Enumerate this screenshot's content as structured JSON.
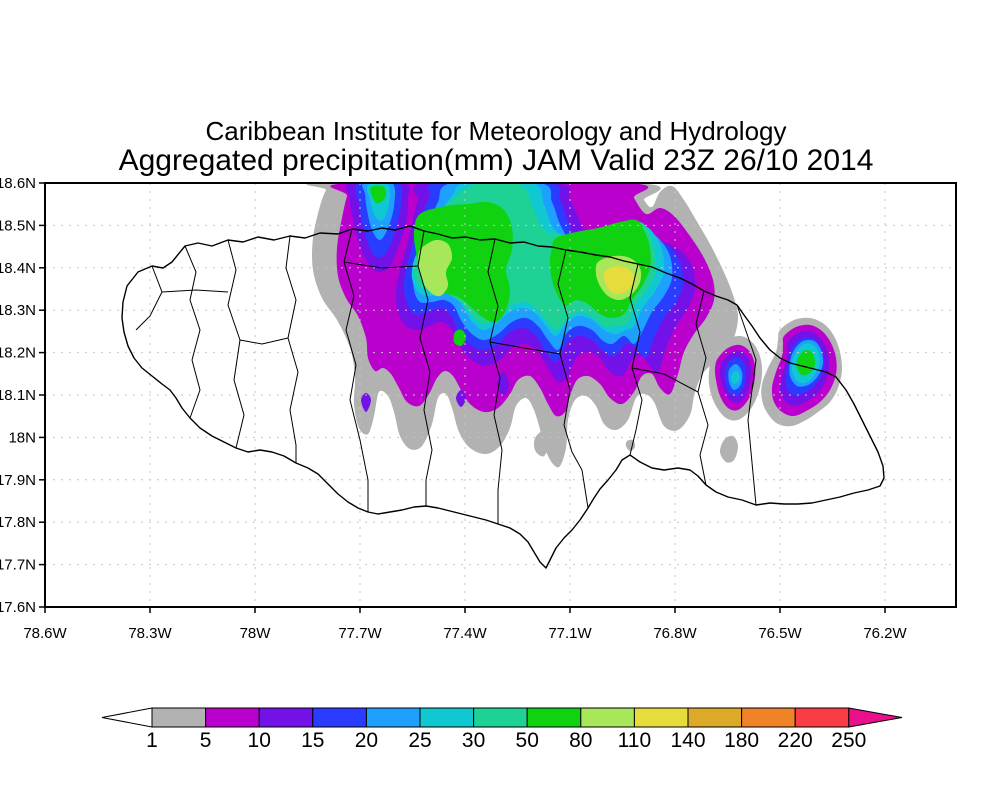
{
  "title": {
    "line1": "Caribbean Institute for Meteorology and Hydrology",
    "line2": "Aggregated precipitation(mm) JAM Valid 23Z 26/10 2014"
  },
  "axes": {
    "lat": [
      "18.6N",
      "18.5N",
      "18.4N",
      "18.3N",
      "18.2N",
      "18.1N",
      "18N",
      "17.9N",
      "17.8N",
      "17.7N",
      "17.6N"
    ],
    "lon": [
      "78.6W",
      "78.3W",
      "78W",
      "77.7W",
      "77.4W",
      "77.1W",
      "76.8W",
      "76.5W",
      "76.2W"
    ]
  },
  "colorbar": {
    "labels": [
      "1",
      "5",
      "10",
      "15",
      "20",
      "25",
      "30",
      "50",
      "80",
      "110",
      "140",
      "180",
      "220",
      "250"
    ],
    "colors": [
      "#b2b2b2",
      "#ba00cd",
      "#7312e8",
      "#2a3cff",
      "#1ea0ff",
      "#10c8d2",
      "#1ed296",
      "#10d210",
      "#a8e65a",
      "#e6dc3c",
      "#dcaa28",
      "#f08228",
      "#fa3c46"
    ],
    "left_arrow_color": "#ffffff",
    "right_arrow_color": "#ea0f8a"
  },
  "palette": {
    "l1": "#b2b2b2",
    "l5": "#ba00cd",
    "l10": "#7312e8",
    "l15": "#2a3cff",
    "l20": "#1ea0ff",
    "l25": "#10c8d2",
    "l30": "#1ed296",
    "l50": "#10d210",
    "l80": "#a8e65a",
    "l110": "#e6dc3c",
    "l140": "#dcaa28",
    "l180": "#f08228",
    "l220": "#fa3c46",
    "l250": "#ea0f8a"
  },
  "chart_data": {
    "type": "heatmap",
    "title": "Aggregated precipitation(mm) JAM Valid 23Z 26/10 2014",
    "source_line": "Caribbean Institute for Meteorology and Hydrology",
    "units": "mm",
    "region": "JAM",
    "valid_time": "23Z 26/10 2014",
    "lat_ticks": [
      "18.6N",
      "18.5N",
      "18.4N",
      "18.3N",
      "18.2N",
      "18.1N",
      "18N",
      "17.9N",
      "17.8N",
      "17.7N",
      "17.6N"
    ],
    "lon_ticks": [
      "78.6W",
      "78.3W",
      "78W",
      "77.7W",
      "77.4W",
      "77.1W",
      "76.8W",
      "76.5W",
      "76.2W"
    ],
    "contour_levels_mm": [
      1,
      5,
      10,
      15,
      20,
      25,
      30,
      50,
      80,
      110,
      140,
      180,
      220,
      250
    ],
    "legend_position": "bottom",
    "grid": "dotted",
    "observations": [
      {
        "area": "north-central / northeast Jamaica (78.0W-76.6W, 18.15N-18.6N)",
        "max_level_mm": "110-140",
        "description": "large precipitation system clipped at map top; yellow-green core (80-110) near 77.45W 18.42N and yellow core (110-140) near 76.95W 18.37N"
      },
      {
        "area": "offshore streak near 77.55W 18.5N-18.6N",
        "max_level_mm": "50-80",
        "description": "narrow banded cell with small green tip at top edge"
      },
      {
        "area": "cell near 76.55W 18.15N",
        "max_level_mm": "20-25",
        "description": "small closed cell: grey/purple/blue rings with pale blue core"
      },
      {
        "area": "cell near 76.45W 18.17N",
        "max_level_mm": "50-80",
        "description": "small closed cell with green core on east coast"
      },
      {
        "area": "speck near 77.65W 18.09N",
        "max_level_mm": "10-15",
        "description": "isolated violet speck inside grey patch"
      }
    ]
  }
}
